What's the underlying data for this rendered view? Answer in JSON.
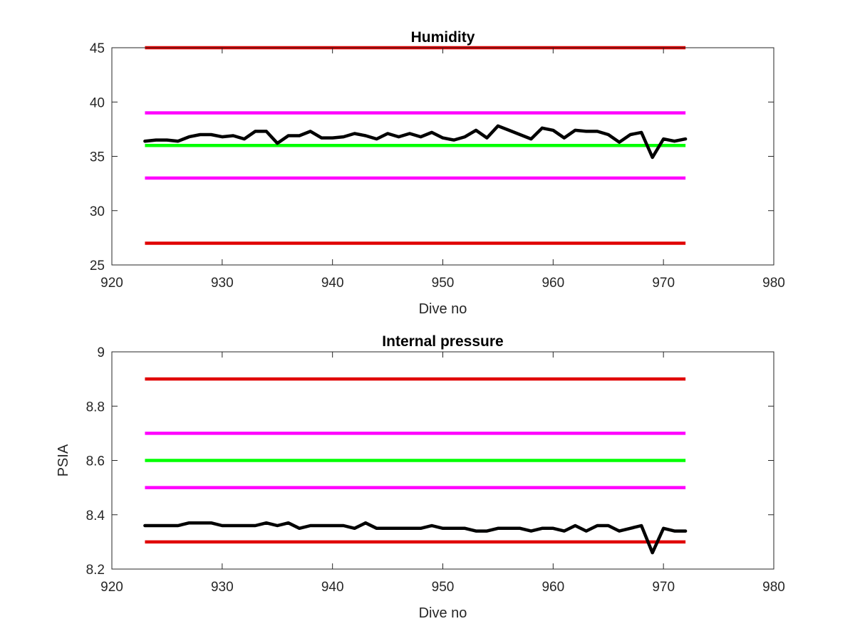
{
  "chart_data": [
    {
      "type": "line",
      "title": "Humidity",
      "xlabel": "Dive no",
      "ylabel": "",
      "xlim": [
        920,
        980
      ],
      "ylim": [
        25,
        45
      ],
      "xticks": [
        "920",
        "930",
        "940",
        "950",
        "960",
        "970",
        "980"
      ],
      "yticks": [
        "25",
        "30",
        "35",
        "40",
        "45"
      ],
      "grid": false,
      "thresholds": [
        {
          "value": 45,
          "color": "#e00000",
          "x": [
            923,
            972
          ]
        },
        {
          "value": 39,
          "color": "#ff00ff",
          "x": [
            923,
            972
          ]
        },
        {
          "value": 36,
          "color": "#00ff00",
          "x": [
            923,
            972
          ]
        },
        {
          "value": 33,
          "color": "#ff00ff",
          "x": [
            923,
            972
          ]
        },
        {
          "value": 27,
          "color": "#e00000",
          "x": [
            923,
            972
          ]
        }
      ],
      "series": [
        {
          "color": "#000000",
          "x": [
            923,
            924,
            925,
            926,
            927,
            928,
            929,
            930,
            931,
            932,
            933,
            934,
            935,
            936,
            937,
            938,
            939,
            940,
            941,
            942,
            943,
            944,
            945,
            946,
            947,
            948,
            949,
            950,
            951,
            952,
            953,
            954,
            955,
            956,
            957,
            958,
            959,
            960,
            961,
            962,
            963,
            964,
            965,
            966,
            967,
            968,
            969,
            970,
            971,
            972
          ],
          "values": [
            36.4,
            36.5,
            36.5,
            36.4,
            36.8,
            37.0,
            37.0,
            36.8,
            36.9,
            36.6,
            37.3,
            37.3,
            36.2,
            36.9,
            36.9,
            37.3,
            36.7,
            36.7,
            36.8,
            37.1,
            36.9,
            36.6,
            37.1,
            36.8,
            37.1,
            36.8,
            37.2,
            36.7,
            36.5,
            36.8,
            37.4,
            36.7,
            37.8,
            37.4,
            37.0,
            36.6,
            37.6,
            37.4,
            36.7,
            37.4,
            37.3,
            37.3,
            37.0,
            36.3,
            37.0,
            37.2,
            34.9,
            36.6,
            36.4,
            36.6
          ]
        }
      ]
    },
    {
      "type": "line",
      "title": "Internal pressure",
      "xlabel": "Dive no",
      "ylabel": "PSIA",
      "xlim": [
        920,
        980
      ],
      "ylim": [
        8.2,
        9
      ],
      "xticks": [
        "920",
        "930",
        "940",
        "950",
        "960",
        "970",
        "980"
      ],
      "yticks": [
        "8.2",
        "8.4",
        "8.6",
        "8.8",
        "9"
      ],
      "grid": false,
      "thresholds": [
        {
          "value": 8.9,
          "color": "#e00000",
          "x": [
            923,
            972
          ]
        },
        {
          "value": 8.7,
          "color": "#ff00ff",
          "x": [
            923,
            972
          ]
        },
        {
          "value": 8.6,
          "color": "#00ff00",
          "x": [
            923,
            972
          ]
        },
        {
          "value": 8.5,
          "color": "#ff00ff",
          "x": [
            923,
            972
          ]
        },
        {
          "value": 8.3,
          "color": "#e00000",
          "x": [
            923,
            972
          ]
        }
      ],
      "series": [
        {
          "color": "#000000",
          "x": [
            923,
            924,
            925,
            926,
            927,
            928,
            929,
            930,
            931,
            932,
            933,
            934,
            935,
            936,
            937,
            938,
            939,
            940,
            941,
            942,
            943,
            944,
            945,
            946,
            947,
            948,
            949,
            950,
            951,
            952,
            953,
            954,
            955,
            956,
            957,
            958,
            959,
            960,
            961,
            962,
            963,
            964,
            965,
            966,
            967,
            968,
            969,
            970,
            971,
            972
          ],
          "values": [
            8.36,
            8.36,
            8.36,
            8.36,
            8.37,
            8.37,
            8.37,
            8.36,
            8.36,
            8.36,
            8.36,
            8.37,
            8.36,
            8.37,
            8.35,
            8.36,
            8.36,
            8.36,
            8.36,
            8.35,
            8.37,
            8.35,
            8.35,
            8.35,
            8.35,
            8.35,
            8.36,
            8.35,
            8.35,
            8.35,
            8.34,
            8.34,
            8.35,
            8.35,
            8.35,
            8.34,
            8.35,
            8.35,
            8.34,
            8.36,
            8.34,
            8.36,
            8.36,
            8.34,
            8.35,
            8.36,
            8.26,
            8.35,
            8.34,
            8.34
          ]
        }
      ]
    }
  ]
}
